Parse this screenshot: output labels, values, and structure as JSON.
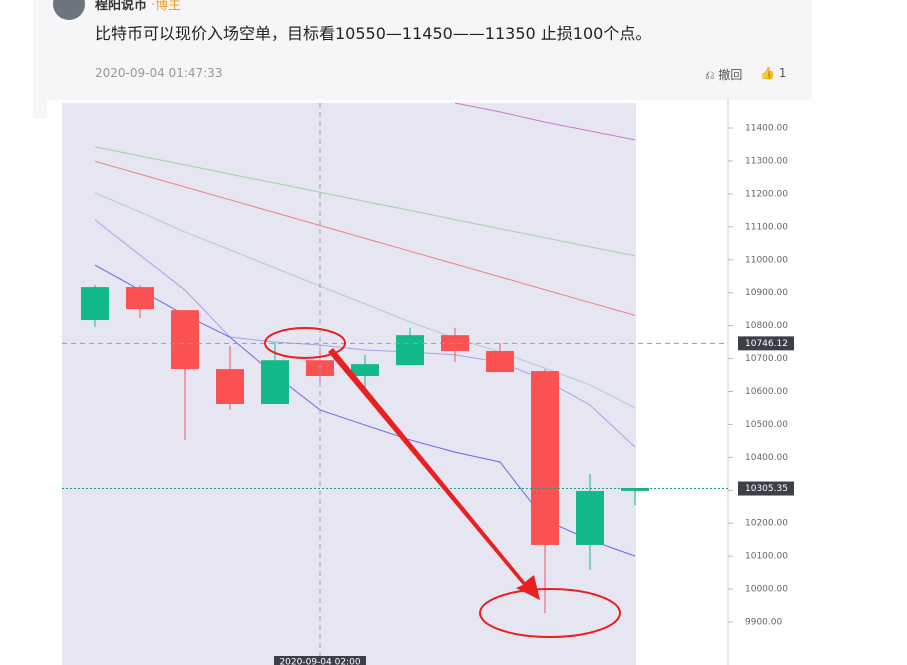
{
  "comment": {
    "user": "程阳说币",
    "role": "·博主",
    "text": "比特币可以现价入场空单，目标看10550—11450——11350 止损100个点。",
    "date": "2020-09-04 01:47:33",
    "withdraw": "撤回",
    "likes": "1"
  },
  "chart_data": {
    "type": "candlestick",
    "categories": [
      null,
      null,
      null,
      null,
      null,
      null,
      null,
      null,
      null,
      null,
      null,
      null,
      null
    ],
    "open": [
      10817,
      10917,
      10847,
      10668,
      10562,
      10695,
      10647,
      10680,
      10771,
      10723,
      10662,
      10134,
      10298
    ],
    "high": [
      10923,
      10923,
      10847,
      10738,
      10750,
      10741,
      10711,
      10793,
      10793,
      10747,
      10668,
      10349,
      10307
    ],
    "low": [
      10796,
      10823,
      10453,
      10544,
      10562,
      10629,
      10604,
      10680,
      10689,
      10659,
      9927,
      10058,
      10255
    ],
    "close": [
      10917,
      10850,
      10668,
      10562,
      10695,
      10647,
      10683,
      10771,
      10723,
      10659,
      10134,
      10298,
      10307
    ],
    "up_color": "#14b98a",
    "down_color": "#fa5252",
    "series": [
      {
        "color": "#9fd0a8",
        "values": [
          11343,
          11315,
          11288,
          11260,
          11233,
          11205,
          11177,
          11150,
          11122,
          11094,
          11067,
          11039,
          11012
        ]
      },
      {
        "color": "#f08080",
        "values": [
          11299,
          11260,
          11221,
          11182,
          11143,
          11104,
          11065,
          11026,
          10987,
          10948,
          10909,
          10870,
          10831
        ]
      },
      {
        "color": "#d078c8",
        "values": [
          null,
          null,
          null,
          null,
          null,
          null,
          null,
          null,
          11476,
          11449,
          11418,
          11391,
          11364
        ]
      },
      {
        "color": "#b8c4e6",
        "values": [
          11203,
          11145,
          11084,
          11030,
          10975,
          10920,
          10866,
          10811,
          10762,
          10720,
          10671,
          10620,
          10550
        ]
      },
      {
        "color": "#a8a0e8",
        "values": [
          11121,
          11014,
          10908,
          10765,
          10750,
          10741,
          10726,
          10720,
          10711,
          10689,
          10635,
          10559,
          10431
        ]
      },
      {
        "color": "#6a6ae8",
        "values": [
          10984,
          10908,
          10832,
          10765,
          10650,
          10544,
          10498,
          10453,
          10416,
          10386,
          10210,
          10149,
          10100
        ]
      }
    ],
    "ylim": [
      9815,
      11476
    ],
    "yticks": [
      {
        "value": 9900,
        "label": "9900.00"
      },
      {
        "value": 10000,
        "label": "10000.00"
      },
      {
        "value": 10100,
        "label": "10100.00"
      },
      {
        "value": 10200,
        "label": "10200.00"
      },
      {
        "value": 10300,
        "label": "10300.00"
      },
      {
        "value": 10400,
        "label": "10400.00"
      },
      {
        "value": 10500,
        "label": "10500.00"
      },
      {
        "value": 10600,
        "label": "10600.00"
      },
      {
        "value": 10700,
        "label": "10700.00"
      },
      {
        "value": 10800,
        "label": "10800.00"
      },
      {
        "value": 10900,
        "label": "10900.00"
      },
      {
        "value": 11000,
        "label": "11000.00"
      },
      {
        "value": 11100,
        "label": "11100.00"
      },
      {
        "value": 11200,
        "label": "11200.00"
      },
      {
        "value": 11300,
        "label": "11300.00"
      },
      {
        "value": 11400,
        "label": "11400.00"
      }
    ],
    "price_lines": [
      {
        "value": 10746.12,
        "color": "#9a9ab0"
      },
      {
        "value": 10305.35,
        "color": "#20a080"
      }
    ],
    "crosshair": {
      "index": 5,
      "label": "2020-09-04 02:00"
    }
  }
}
